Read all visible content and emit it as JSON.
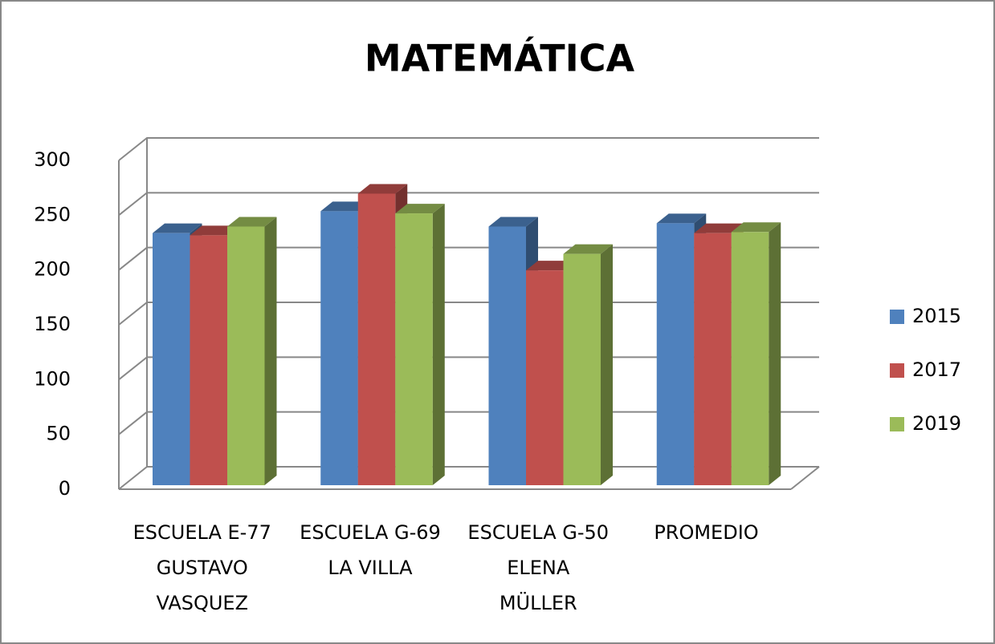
{
  "chart_data": {
    "type": "bar3d",
    "title": "MATEMÁTICA",
    "categories": [
      [
        "ESCUELA E-77",
        "GUSTAVO",
        "VASQUEZ"
      ],
      [
        "ESCUELA G-69",
        "LA VILLA"
      ],
      [
        "ESCUELA G-50",
        "ELENA",
        "MÜLLER"
      ],
      [
        "PROMEDIO"
      ]
    ],
    "series": [
      {
        "name": "2015",
        "color": "#4f81bd",
        "values": [
          230,
          250,
          236,
          239
        ]
      },
      {
        "name": "2017",
        "color": "#c0504d",
        "values": [
          228,
          266,
          196,
          230
        ]
      },
      {
        "name": "2019",
        "color": "#9bbb59",
        "values": [
          236,
          248,
          211,
          231
        ]
      }
    ],
    "ylim": [
      0,
      300
    ],
    "yticks": [
      0,
      50,
      100,
      150,
      200,
      250,
      300
    ],
    "grid": true,
    "legend": "right"
  }
}
